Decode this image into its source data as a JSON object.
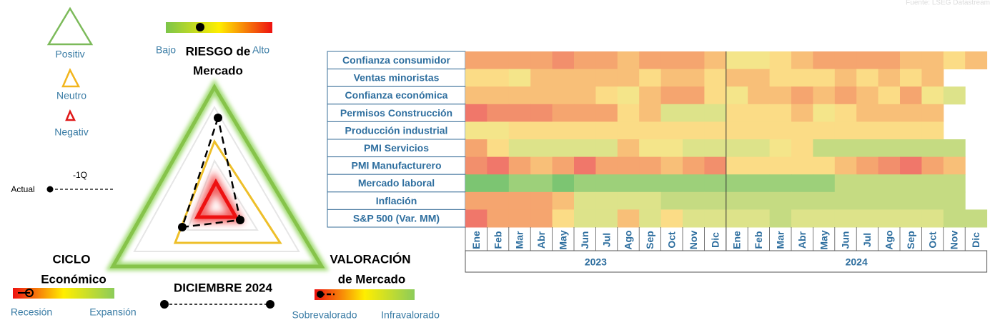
{
  "source": "Fuente: LSEG Datastream",
  "legend": {
    "items": [
      "Positiv",
      "Neutro",
      "Negativ"
    ],
    "actual": "Actual",
    "previous": "-1Q"
  },
  "gauges": [
    {
      "title": [
        "RIESGO de",
        "Mercado"
      ],
      "low": "Bajo",
      "high": "Alto"
    },
    {
      "title": [
        "CICLO",
        "Económico"
      ],
      "low": "Recesión",
      "high": "Expansión"
    },
    {
      "title": [
        "VALORACIÓN",
        "de Mercado"
      ],
      "low": "Sobrevalorado",
      "high": "Infravalorado"
    }
  ],
  "date": "DICIEMBRE 2024",
  "heatmap": {
    "rows": [
      "Confianza consumidor",
      "Ventas minoristas",
      "Confianza económica",
      "Permisos Construcción",
      "Producción industrial",
      "PMI Servicios",
      "PMI Manufacturero",
      "Mercado laboral",
      "Inflación",
      "S&P 500  (Var. MM)"
    ],
    "months": [
      "Ene",
      "Feb",
      "Mar",
      "Abr",
      "May",
      "Jun",
      "Jul",
      "Ago",
      "Sep",
      "Oct",
      "Nov",
      "Dic",
      "Ene",
      "Feb",
      "Mar",
      "Abr",
      "May",
      "Jun",
      "Jul",
      "Ago",
      "Sep",
      "Oct",
      "Nov",
      "Dic"
    ],
    "years": [
      "2023",
      "2024"
    ],
    "colors": [
      [
        "#f5a56f",
        "#f5a56f",
        "#f5a56f",
        "#f5a56f",
        "#f28f6c",
        "#f5a56f",
        "#f5a56f",
        "#f8bf78",
        "#f5a56f",
        "#f5a56f",
        "#f5a56f",
        "#f8bf78",
        "#f4e58a",
        "#f4e58a",
        "#fbdc86",
        "#f8bf78",
        "#f5a56f",
        "#f5a56f",
        "#f5a56f",
        "#f5a56f",
        "#f8bf78",
        "#f8bf78",
        "#fbdc86",
        "#f8bf78"
      ],
      [
        "#fbdc86",
        "#fbdc86",
        "#f4e58a",
        "#f8bf78",
        "#f8bf78",
        "#f8bf78",
        "#f8bf78",
        "#f8bf78",
        "#fbdc86",
        "#f8bf78",
        "#f8bf78",
        "#fbdc86",
        "#f8bf78",
        "#f8bf78",
        "#fbdc86",
        "#fbdc86",
        "#fbdc86",
        "#f8bf78",
        "#fbdc86",
        "#f8bf78",
        "#fbdc86",
        "#f8bf78",
        null,
        null
      ],
      [
        "#f8bf78",
        "#f8bf78",
        "#f8bf78",
        "#f8bf78",
        "#f8bf78",
        "#f8bf78",
        "#fbdc86",
        "#f4e58a",
        "#f8bf78",
        "#f5a56f",
        "#f5a56f",
        "#fbdc86",
        "#f4e58a",
        "#f8bf78",
        "#f8bf78",
        "#f5a56f",
        "#f8bf78",
        "#f5a56f",
        "#f8bf78",
        "#fbdc86",
        "#f5a56f",
        "#f4e58a",
        "#dde38a",
        null
      ],
      [
        "#f0776a",
        "#f28f6c",
        "#f28f6c",
        "#f28f6c",
        "#f5a56f",
        "#f5a56f",
        "#f5a56f",
        "#fbdc86",
        "#f8bf78",
        "#dde38a",
        "#dde38a",
        "#dde38a",
        "#fbdc86",
        "#fbdc86",
        "#fbdc86",
        "#f8bf78",
        "#f4e58a",
        "#fbdc86",
        "#f8bf78",
        "#f8bf78",
        "#f8bf78",
        "#f8bf78",
        null,
        null
      ],
      [
        "#f4e58a",
        "#f4e58a",
        "#fbdc86",
        "#fbdc86",
        "#fbdc86",
        "#fbdc86",
        "#fbdc86",
        "#fbdc86",
        "#fbdc86",
        "#fbdc86",
        "#fbdc86",
        "#fbdc86",
        "#fbdc86",
        "#fbdc86",
        "#fbdc86",
        "#fbdc86",
        "#fbdc86",
        "#fbdc86",
        "#fbdc86",
        "#fbdc86",
        "#fbdc86",
        "#fbdc86",
        null,
        null
      ],
      [
        "#f5a56f",
        "#fbdc86",
        "#dde38a",
        "#dde38a",
        "#dde38a",
        "#dde38a",
        "#dde38a",
        "#f8bf78",
        "#f4e58a",
        "#f4e58a",
        "#dde38a",
        "#dde38a",
        "#dde38a",
        "#dde38a",
        "#f4e58a",
        "#fbdc86",
        "#c5db82",
        "#c5db82",
        "#c5db82",
        "#c5db82",
        "#c5db82",
        "#c5db82",
        "#c5db82",
        null
      ],
      [
        "#f28f6c",
        "#f0776a",
        "#f5a56f",
        "#f8bf78",
        "#f5a56f",
        "#f0776a",
        "#f5a56f",
        "#f5a56f",
        "#f5a56f",
        "#f8bf78",
        "#f5a56f",
        "#f28f6c",
        "#fbdc86",
        "#fbdc86",
        "#fbdc86",
        "#fbdc86",
        "#fbdc86",
        "#f8bf78",
        "#f5a56f",
        "#f28f6c",
        "#f0776a",
        "#f5a56f",
        "#f8bf78",
        null
      ],
      [
        "#7cc572",
        "#7cc572",
        "#9dd07a",
        "#9dd07a",
        "#7cc572",
        "#9dd07a",
        "#9dd07a",
        "#9dd07a",
        "#9dd07a",
        "#9dd07a",
        "#9dd07a",
        "#9dd07a",
        "#9dd07a",
        "#9dd07a",
        "#9dd07a",
        "#9dd07a",
        "#9dd07a",
        "#c5db82",
        "#c5db82",
        "#c5db82",
        "#c5db82",
        "#c5db82",
        "#c5db82",
        null
      ],
      [
        "#f5a56f",
        "#f5a56f",
        "#f5a56f",
        "#f5a56f",
        "#f8bf78",
        "#dde38a",
        "#dde38a",
        "#dde38a",
        "#dde38a",
        "#c5db82",
        "#c5db82",
        "#c5db82",
        "#c5db82",
        "#c5db82",
        "#c5db82",
        "#c5db82",
        "#c5db82",
        "#c5db82",
        "#c5db82",
        "#c5db82",
        "#c5db82",
        "#c5db82",
        "#c5db82",
        null
      ],
      [
        "#f0776a",
        "#f5a56f",
        "#f5a56f",
        "#f5a56f",
        "#fbdc86",
        "#dde38a",
        "#dde38a",
        "#f8bf78",
        "#dde38a",
        "#fbdc86",
        "#dde38a",
        "#dde38a",
        "#dde38a",
        "#dde38a",
        "#c5db82",
        "#dde38a",
        "#dde38a",
        "#dde38a",
        "#dde38a",
        "#dde38a",
        "#dde38a",
        "#dde38a",
        "#c5db82",
        "#c5db82"
      ]
    ]
  }
}
